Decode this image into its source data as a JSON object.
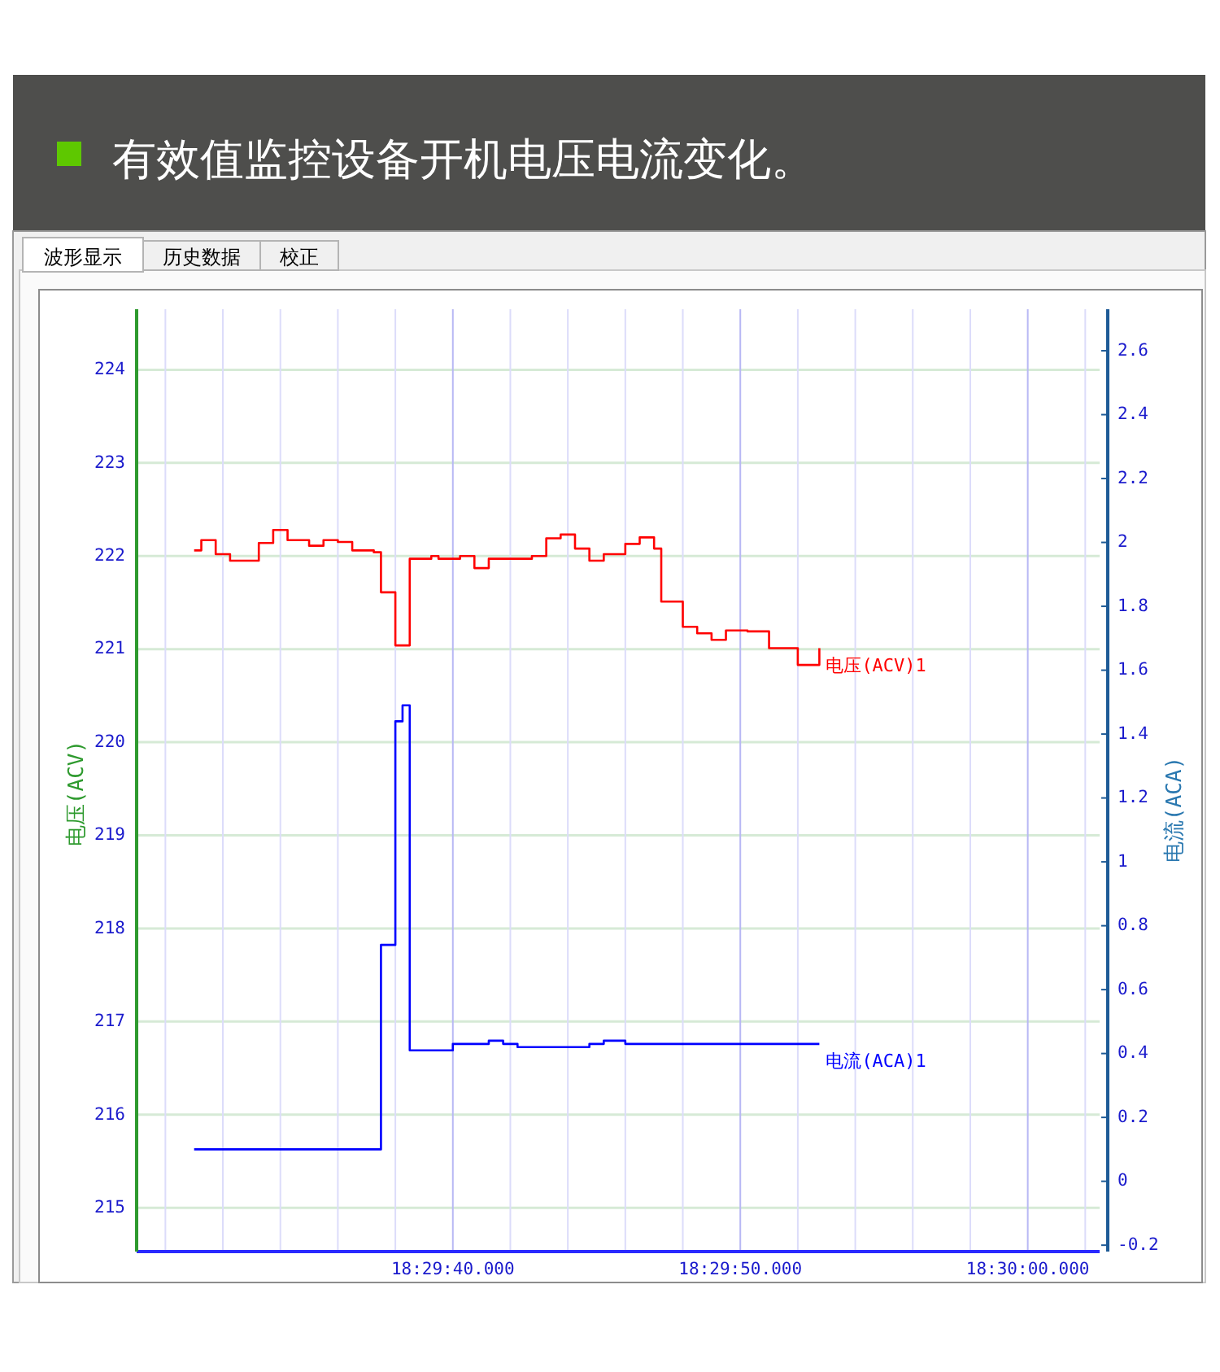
{
  "chart_data": {
    "type": "step",
    "title": "有效值监控设备开机电压电流变化。",
    "ylabel": "电压(ACV)",
    "y2label": "电流(ACA)",
    "annotations": [
      "波形显示",
      "历史数据",
      "校正"
    ],
    "categories": [
      null,
      null,
      null,
      null,
      null,
      null,
      null,
      null,
      null,
      null,
      null,
      null,
      null,
      null,
      null,
      null,
      null,
      null,
      null,
      null,
      null,
      null,
      null,
      null,
      null,
      null,
      null,
      null,
      null,
      null,
      null,
      null,
      null,
      null,
      null,
      null,
      null,
      null,
      null,
      null,
      null,
      null,
      null,
      null,
      "18:29:40.000",
      null,
      null,
      null,
      null,
      null,
      null,
      null,
      null,
      null,
      null,
      null,
      null,
      null,
      null,
      null,
      null,
      null,
      null,
      null,
      null,
      null,
      null,
      null,
      null,
      null,
      null,
      null,
      null,
      null,
      null,
      null,
      null,
      null,
      null,
      null,
      null,
      null,
      null,
      null,
      "18:29:50.000",
      null,
      null,
      null,
      null,
      null,
      null,
      null,
      null,
      null,
      null,
      null,
      null,
      null,
      null,
      null,
      null,
      null,
      null,
      null,
      null,
      null,
      null,
      null,
      null,
      null,
      null,
      null,
      null,
      null,
      null,
      null,
      null,
      null,
      null,
      null,
      null,
      null,
      null,
      null,
      "18:30:00.000",
      null,
      null,
      null,
      null,
      null,
      null,
      null,
      null,
      null,
      null
    ],
    "series": [
      {
        "name": "电压(ACV)1",
        "color": "#ff0000",
        "values": [
          null,
          null,
          null,
          null,
          null,
          null,
          null,
          null,
          222.06,
          222.17,
          222.17,
          222.02,
          222.02,
          221.95,
          221.95,
          221.95,
          221.95,
          222.14,
          222.14,
          222.28,
          222.28,
          222.17,
          222.17,
          222.17,
          222.11,
          222.11,
          222.17,
          222.17,
          222.15,
          222.15,
          222.06,
          222.06,
          222.06,
          222.04,
          221.61,
          221.61,
          221.04,
          221.04,
          221.97,
          221.97,
          221.97,
          222,
          221.97,
          221.97,
          221.97,
          222,
          222,
          221.87,
          221.87,
          221.97,
          221.97,
          221.97,
          221.97,
          221.97,
          221.97,
          222,
          222,
          222.19,
          222.19,
          222.23,
          222.23,
          222.08,
          222.08,
          221.95,
          221.95,
          222.02,
          222.02,
          222.02,
          222.13,
          222.13,
          222.2,
          222.2,
          222.08,
          221.51,
          221.51,
          221.51,
          221.24,
          221.24,
          221.17,
          221.17,
          221.1,
          221.1,
          221.2,
          221.2,
          221.2,
          221.19,
          221.19,
          221.19,
          221.01,
          221.01,
          221.01,
          221.01,
          220.83,
          220.83,
          220.83,
          221.01,
          null,
          null,
          null,
          null,
          null,
          null,
          null,
          null,
          null,
          null,
          null,
          null,
          null,
          null,
          null,
          null,
          null,
          null,
          null,
          null,
          null,
          null,
          null,
          null,
          null,
          null,
          null,
          null,
          null,
          null,
          null,
          null,
          null,
          null,
          null,
          null,
          null,
          null,
          null
        ]
      },
      {
        "name": "电流(ACA)1",
        "color": "#0000ff",
        "axis": "y2",
        "values": [
          null,
          null,
          null,
          null,
          null,
          null,
          null,
          null,
          0.1,
          0.1,
          0.1,
          0.1,
          0.1,
          0.1,
          0.1,
          0.1,
          0.1,
          0.1,
          0.1,
          0.1,
          0.1,
          0.1,
          0.1,
          0.1,
          0.1,
          0.1,
          0.1,
          0.1,
          0.1,
          0.1,
          0.1,
          0.1,
          0.1,
          0.1,
          0.74,
          0.74,
          1.44,
          1.49,
          0.41,
          0.41,
          0.41,
          0.41,
          0.41,
          0.41,
          0.43,
          0.43,
          0.43,
          0.43,
          0.43,
          0.44,
          0.44,
          0.43,
          0.43,
          0.42,
          0.42,
          0.42,
          0.42,
          0.42,
          0.42,
          0.42,
          0.42,
          0.42,
          0.42,
          0.43,
          0.43,
          0.44,
          0.44,
          0.44,
          0.43,
          0.43,
          0.43,
          0.43,
          0.43,
          0.43,
          0.43,
          0.43,
          0.43,
          0.43,
          0.43,
          0.43,
          0.43,
          0.43,
          0.43,
          0.43,
          0.43,
          0.43,
          0.43,
          0.43,
          0.43,
          0.43,
          0.43,
          0.43,
          0.43,
          0.43,
          0.43,
          0.43,
          null,
          null,
          null,
          null,
          null,
          null,
          null,
          null,
          null,
          null,
          null,
          null,
          null,
          null,
          null,
          null,
          null,
          null,
          null,
          null,
          null,
          null,
          null,
          null,
          null,
          null,
          null,
          null,
          null,
          null,
          null,
          null,
          null,
          null,
          null,
          null,
          null,
          null,
          null
        ]
      }
    ],
    "ylim": [
      214.53,
      224.65
    ],
    "yticks": [
      215,
      216,
      217,
      218,
      219,
      220,
      221,
      222,
      223,
      224
    ],
    "y2lim": [
      -0.22,
      2.73
    ],
    "y2ticks": [
      -0.2,
      0,
      0.2,
      0.4,
      0.6,
      0.8,
      1,
      1.2,
      1.4,
      1.6,
      1.8,
      2,
      2.2,
      2.4,
      2.6
    ],
    "grid": true
  }
}
